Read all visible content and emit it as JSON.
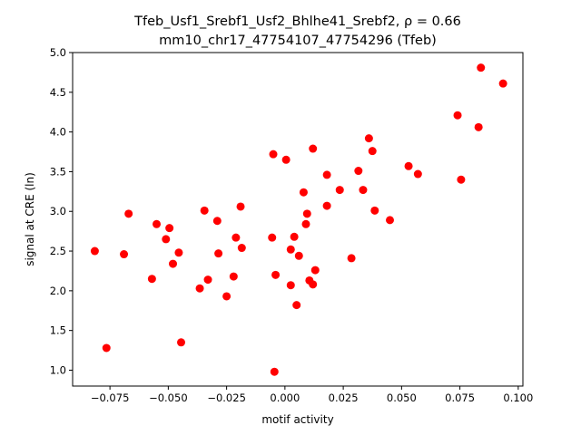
{
  "chart_data": {
    "type": "scatter",
    "title": "Tfeb_Usf1_Srebf1_Usf2_Bhlhe41_Srebf2, ρ = 0.66",
    "subtitle": "mm10_chr17_47754107_47754296 (Tfeb)",
    "xlabel": "motif activity",
    "ylabel": "signal at CRE (ln)",
    "xlim": [
      -0.091,
      0.102
    ],
    "ylim": [
      0.8,
      5.0
    ],
    "x_ticks": [
      -0.075,
      -0.05,
      -0.025,
      0.0,
      0.025,
      0.05,
      0.075,
      0.1
    ],
    "x_tick_labels": [
      "−0.075",
      "−0.050",
      "−0.025",
      "0.000",
      "0.025",
      "0.050",
      "0.075",
      "0.100"
    ],
    "y_ticks": [
      1.0,
      1.5,
      2.0,
      2.5,
      3.0,
      3.5,
      4.0,
      4.5,
      5.0
    ],
    "y_tick_labels": [
      "1.0",
      "1.5",
      "2.0",
      "2.5",
      "3.0",
      "3.5",
      "4.0",
      "4.5",
      "5.0"
    ],
    "grid": false,
    "marker_color": "#ff0000",
    "series": [
      {
        "points": [
          [
            -0.0815,
            2.5
          ],
          [
            -0.0765,
            1.28
          ],
          [
            -0.069,
            2.46
          ],
          [
            -0.067,
            2.97
          ],
          [
            -0.057,
            2.15
          ],
          [
            -0.055,
            2.84
          ],
          [
            -0.051,
            2.65
          ],
          [
            -0.0495,
            2.79
          ],
          [
            -0.048,
            2.34
          ],
          [
            -0.0455,
            2.48
          ],
          [
            -0.0445,
            1.35
          ],
          [
            -0.0365,
            2.03
          ],
          [
            -0.0345,
            3.01
          ],
          [
            -0.033,
            2.14
          ],
          [
            -0.029,
            2.88
          ],
          [
            -0.0285,
            2.47
          ],
          [
            -0.025,
            1.93
          ],
          [
            -0.022,
            2.18
          ],
          [
            -0.021,
            2.67
          ],
          [
            -0.019,
            3.06
          ],
          [
            -0.0185,
            2.54
          ],
          [
            -0.0055,
            2.67
          ],
          [
            -0.005,
            3.72
          ],
          [
            -0.0045,
            0.98
          ],
          [
            -0.004,
            2.2
          ],
          [
            0.0005,
            3.65
          ],
          [
            0.0025,
            2.07
          ],
          [
            0.0025,
            2.52
          ],
          [
            0.004,
            2.68
          ],
          [
            0.005,
            1.82
          ],
          [
            0.006,
            2.44
          ],
          [
            0.008,
            3.24
          ],
          [
            0.009,
            2.84
          ],
          [
            0.0095,
            2.97
          ],
          [
            0.0105,
            2.13
          ],
          [
            0.012,
            2.08
          ],
          [
            0.012,
            3.79
          ],
          [
            0.013,
            2.26
          ],
          [
            0.018,
            3.07
          ],
          [
            0.018,
            3.46
          ],
          [
            0.0235,
            3.27
          ],
          [
            0.0285,
            2.41
          ],
          [
            0.0315,
            3.51
          ],
          [
            0.0335,
            3.27
          ],
          [
            0.036,
            3.92
          ],
          [
            0.0375,
            3.76
          ],
          [
            0.0385,
            3.01
          ],
          [
            0.045,
            2.89
          ],
          [
            0.053,
            3.57
          ],
          [
            0.057,
            3.47
          ],
          [
            0.074,
            4.21
          ],
          [
            0.0755,
            3.4
          ],
          [
            0.083,
            4.06
          ],
          [
            0.084,
            4.81
          ],
          [
            0.0935,
            4.61
          ]
        ]
      }
    ]
  }
}
